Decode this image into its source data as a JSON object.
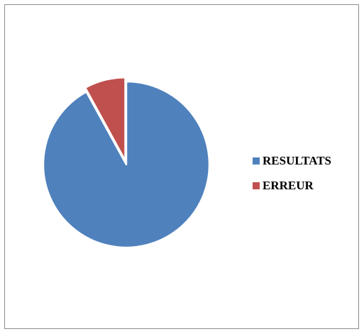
{
  "chart_data": {
    "type": "pie",
    "title": "",
    "slices": [
      {
        "label": "RESULTATS",
        "value": 92,
        "color": "#4F81BD"
      },
      {
        "label": "ERREUR",
        "value": 8,
        "color": "#C0504D",
        "exploded": true
      }
    ],
    "legend_position": "right"
  }
}
